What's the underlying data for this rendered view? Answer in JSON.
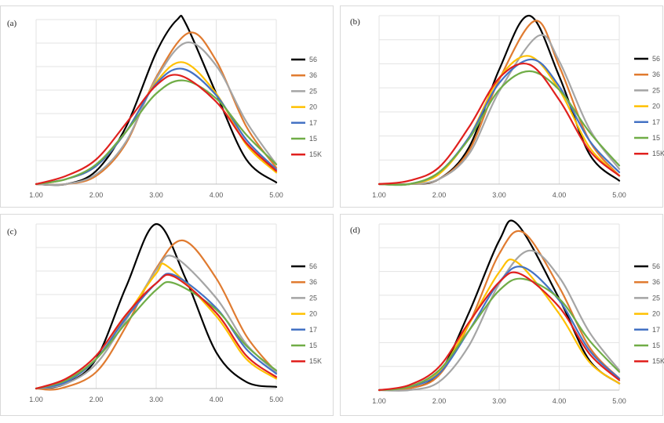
{
  "chart_data": [
    {
      "panel": "(a)",
      "type": "line",
      "xlim": [
        1.0,
        5.0
      ],
      "xticks": [
        "1.00",
        "2.00",
        "3.00",
        "4.00",
        "5.00"
      ],
      "grid": true,
      "legend_position": "right",
      "series": [
        {
          "name": "56",
          "color": "#000000",
          "x": [
            1.0,
            1.5,
            2.0,
            2.5,
            3.0,
            3.35,
            3.5,
            4.0,
            4.5,
            5.0
          ],
          "y": [
            0.0,
            0.0,
            0.08,
            0.35,
            0.8,
            1.0,
            0.97,
            0.55,
            0.15,
            0.01
          ]
        },
        {
          "name": "36",
          "color": "#E07B30",
          "x": [
            1.0,
            1.5,
            2.0,
            2.5,
            3.0,
            3.55,
            4.0,
            4.5,
            5.0
          ],
          "y": [
            0.0,
            0.0,
            0.05,
            0.25,
            0.65,
            0.92,
            0.75,
            0.35,
            0.1
          ]
        },
        {
          "name": "25",
          "color": "#A5A5A5",
          "x": [
            1.0,
            1.5,
            2.0,
            2.5,
            3.0,
            3.5,
            4.0,
            4.5,
            5.0
          ],
          "y": [
            0.0,
            0.0,
            0.06,
            0.26,
            0.64,
            0.86,
            0.72,
            0.38,
            0.12
          ]
        },
        {
          "name": "20",
          "color": "#FFC000",
          "x": [
            1.0,
            1.5,
            2.0,
            2.5,
            3.0,
            3.45,
            4.0,
            4.5,
            5.0
          ],
          "y": [
            0.0,
            0.03,
            0.11,
            0.32,
            0.62,
            0.74,
            0.55,
            0.24,
            0.07
          ]
        },
        {
          "name": "17",
          "color": "#4472C4",
          "x": [
            1.0,
            1.5,
            2.0,
            2.5,
            3.0,
            3.45,
            4.0,
            4.5,
            5.0
          ],
          "y": [
            0.0,
            0.03,
            0.11,
            0.32,
            0.61,
            0.7,
            0.54,
            0.27,
            0.09
          ]
        },
        {
          "name": "15",
          "color": "#70AD47",
          "x": [
            1.0,
            1.5,
            2.0,
            2.5,
            3.0,
            3.45,
            4.0,
            4.5,
            5.0
          ],
          "y": [
            0.0,
            0.03,
            0.12,
            0.32,
            0.55,
            0.63,
            0.52,
            0.3,
            0.12
          ]
        },
        {
          "name": "15K",
          "color": "#E0201E",
          "x": [
            1.0,
            1.5,
            2.0,
            2.5,
            3.0,
            3.4,
            4.0,
            4.5,
            5.0
          ],
          "y": [
            0.0,
            0.05,
            0.15,
            0.37,
            0.6,
            0.66,
            0.5,
            0.25,
            0.08
          ]
        }
      ]
    },
    {
      "panel": "(b)",
      "type": "line",
      "xlim": [
        1.0,
        5.0
      ],
      "xticks": [
        "1.00",
        "2.00",
        "3.00",
        "4.00",
        "5.00"
      ],
      "grid": true,
      "legend_position": "right",
      "series": [
        {
          "name": "56",
          "color": "#000000",
          "x": [
            1.0,
            1.5,
            2.0,
            2.5,
            3.0,
            3.5,
            4.0,
            4.5,
            5.0
          ],
          "y": [
            0.0,
            0.0,
            0.03,
            0.22,
            0.68,
            1.0,
            0.64,
            0.18,
            0.02
          ]
        },
        {
          "name": "36",
          "color": "#E07B30",
          "x": [
            1.0,
            1.5,
            2.0,
            2.5,
            3.0,
            3.6,
            4.0,
            4.5,
            5.0
          ],
          "y": [
            0.0,
            0.0,
            0.03,
            0.2,
            0.62,
            0.97,
            0.7,
            0.26,
            0.05
          ]
        },
        {
          "name": "25",
          "color": "#A5A5A5",
          "x": [
            1.0,
            1.5,
            2.0,
            2.5,
            3.0,
            3.65,
            4.0,
            4.5,
            5.0
          ],
          "y": [
            0.0,
            0.0,
            0.03,
            0.18,
            0.55,
            0.88,
            0.73,
            0.33,
            0.09
          ]
        },
        {
          "name": "20",
          "color": "#FFC000",
          "x": [
            1.0,
            1.5,
            2.0,
            2.5,
            3.0,
            3.5,
            4.0,
            4.5,
            5.0
          ],
          "y": [
            0.0,
            0.0,
            0.06,
            0.28,
            0.63,
            0.76,
            0.56,
            0.22,
            0.05
          ]
        },
        {
          "name": "17",
          "color": "#4472C4",
          "x": [
            1.0,
            1.5,
            2.0,
            2.5,
            3.0,
            3.55,
            4.0,
            4.5,
            5.0
          ],
          "y": [
            0.0,
            0.0,
            0.07,
            0.28,
            0.6,
            0.74,
            0.58,
            0.26,
            0.07
          ]
        },
        {
          "name": "15",
          "color": "#70AD47",
          "x": [
            1.0,
            1.5,
            2.0,
            2.5,
            3.0,
            3.5,
            4.0,
            4.5,
            5.0
          ],
          "y": [
            0.0,
            0.0,
            0.07,
            0.27,
            0.56,
            0.67,
            0.56,
            0.31,
            0.11
          ]
        },
        {
          "name": "15K",
          "color": "#E0201E",
          "x": [
            1.0,
            1.5,
            2.0,
            2.5,
            3.0,
            3.5,
            4.0,
            4.5,
            5.0
          ],
          "y": [
            0.0,
            0.02,
            0.1,
            0.34,
            0.63,
            0.71,
            0.5,
            0.2,
            0.05
          ]
        }
      ]
    },
    {
      "panel": "(c)",
      "type": "line",
      "xlim": [
        1.0,
        5.0
      ],
      "xticks": [
        "1.00",
        "2.00",
        "3.00",
        "4.00",
        "5.00"
      ],
      "grid": true,
      "legend_position": "right",
      "series": [
        {
          "name": "56",
          "color": "#000000",
          "x": [
            1.0,
            1.5,
            2.0,
            2.5,
            3.0,
            3.5,
            4.0,
            4.5,
            5.0
          ],
          "y": [
            0.0,
            0.03,
            0.18,
            0.62,
            1.0,
            0.66,
            0.22,
            0.04,
            0.01
          ]
        },
        {
          "name": "36",
          "color": "#E07B30",
          "x": [
            1.0,
            1.4,
            2.0,
            2.5,
            3.0,
            3.45,
            4.0,
            4.5,
            5.0
          ],
          "y": [
            0.0,
            0.0,
            0.1,
            0.38,
            0.73,
            0.9,
            0.67,
            0.32,
            0.1
          ]
        },
        {
          "name": "25",
          "color": "#A5A5A5",
          "x": [
            1.0,
            1.5,
            2.0,
            2.5,
            3.0,
            3.3,
            4.0,
            4.5,
            5.0
          ],
          "y": [
            0.0,
            0.03,
            0.15,
            0.42,
            0.72,
            0.8,
            0.55,
            0.27,
            0.1
          ]
        },
        {
          "name": "20",
          "color": "#FFC000",
          "x": [
            1.0,
            1.5,
            2.0,
            2.5,
            3.0,
            3.2,
            4.0,
            4.5,
            5.0
          ],
          "y": [
            0.0,
            0.05,
            0.18,
            0.44,
            0.7,
            0.74,
            0.44,
            0.18,
            0.06
          ]
        },
        {
          "name": "17",
          "color": "#4472C4",
          "x": [
            1.0,
            1.5,
            2.0,
            2.5,
            3.0,
            3.3,
            4.0,
            4.5,
            5.0
          ],
          "y": [
            0.0,
            0.04,
            0.18,
            0.43,
            0.64,
            0.69,
            0.49,
            0.24,
            0.09
          ]
        },
        {
          "name": "15",
          "color": "#70AD47",
          "x": [
            1.0,
            1.5,
            2.0,
            2.5,
            3.0,
            3.3,
            4.0,
            4.5,
            5.0
          ],
          "y": [
            0.0,
            0.05,
            0.18,
            0.4,
            0.6,
            0.64,
            0.48,
            0.26,
            0.11
          ]
        },
        {
          "name": "15K",
          "color": "#E0201E",
          "x": [
            1.0,
            1.5,
            2.0,
            2.5,
            3.0,
            3.3,
            4.0,
            4.5,
            5.0
          ],
          "y": [
            0.0,
            0.06,
            0.2,
            0.45,
            0.64,
            0.68,
            0.46,
            0.2,
            0.07
          ]
        }
      ]
    },
    {
      "panel": "(d)",
      "type": "line",
      "xlim": [
        1.0,
        5.0
      ],
      "xticks": [
        "1.00",
        "2.00",
        "3.00",
        "4.00",
        "5.00"
      ],
      "grid": true,
      "legend_position": "right",
      "series": [
        {
          "name": "56",
          "color": "#000000",
          "x": [
            1.0,
            1.5,
            2.0,
            2.5,
            3.0,
            3.3,
            4.0,
            4.5,
            5.0
          ],
          "y": [
            0.0,
            0.01,
            0.1,
            0.47,
            0.9,
            1.0,
            0.55,
            0.18,
            0.04
          ]
        },
        {
          "name": "36",
          "color": "#E07B30",
          "x": [
            1.0,
            1.5,
            2.0,
            2.5,
            3.0,
            3.4,
            4.0,
            4.5,
            5.0
          ],
          "y": [
            0.0,
            0.01,
            0.09,
            0.4,
            0.82,
            0.95,
            0.62,
            0.26,
            0.07
          ]
        },
        {
          "name": "25",
          "color": "#A5A5A5",
          "x": [
            1.0,
            1.5,
            2.0,
            2.5,
            3.0,
            3.5,
            4.0,
            4.5,
            5.0
          ],
          "y": [
            0.0,
            0.0,
            0.05,
            0.27,
            0.64,
            0.84,
            0.68,
            0.35,
            0.12
          ]
        },
        {
          "name": "20",
          "color": "#FFC000",
          "x": [
            1.0,
            1.5,
            2.0,
            2.5,
            3.0,
            3.3,
            4.0,
            4.5,
            5.0
          ],
          "y": [
            0.0,
            0.02,
            0.11,
            0.4,
            0.71,
            0.77,
            0.46,
            0.17,
            0.04
          ]
        },
        {
          "name": "17",
          "color": "#4472C4",
          "x": [
            1.0,
            1.5,
            2.0,
            2.5,
            3.0,
            3.4,
            4.0,
            4.5,
            5.0
          ],
          "y": [
            0.0,
            0.02,
            0.1,
            0.36,
            0.65,
            0.74,
            0.54,
            0.24,
            0.07
          ]
        },
        {
          "name": "15",
          "color": "#70AD47",
          "x": [
            1.0,
            1.5,
            2.0,
            2.5,
            3.0,
            3.4,
            4.0,
            4.5,
            5.0
          ],
          "y": [
            0.0,
            0.02,
            0.12,
            0.36,
            0.6,
            0.67,
            0.55,
            0.3,
            0.11
          ]
        },
        {
          "name": "15K",
          "color": "#E0201E",
          "x": [
            1.0,
            1.5,
            2.0,
            2.5,
            3.0,
            3.35,
            4.0,
            4.5,
            5.0
          ],
          "y": [
            0.0,
            0.03,
            0.14,
            0.41,
            0.65,
            0.7,
            0.5,
            0.22,
            0.06
          ]
        }
      ]
    }
  ]
}
